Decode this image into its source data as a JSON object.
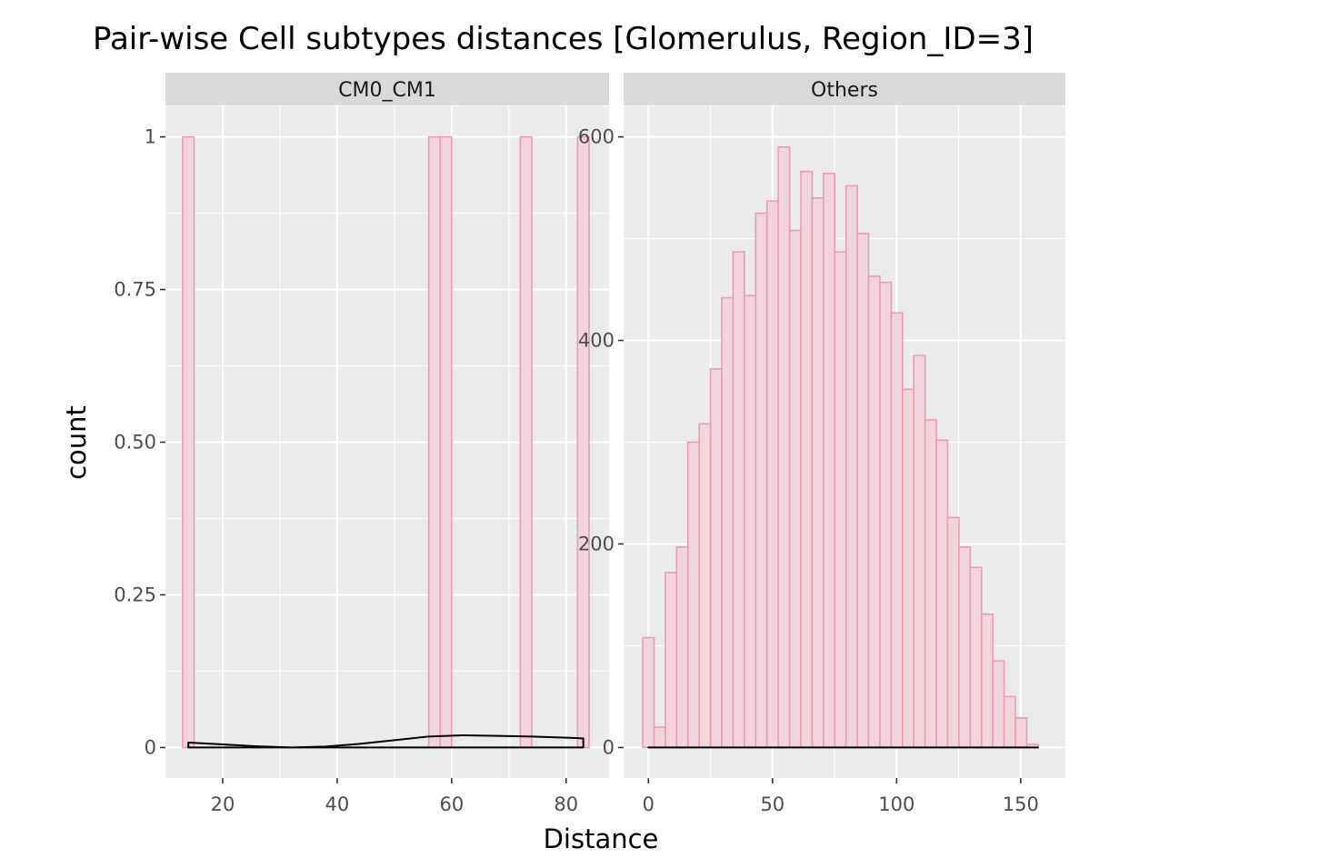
{
  "chart_data": {
    "type": "bar",
    "title": "Pair-wise Cell subtypes distances [Glomerulus, Region_ID=3]",
    "xlabel": "Distance",
    "ylabel": "count",
    "grid": true,
    "colors": {
      "panel_background": "#ebebeb",
      "strip_background": "#d9d9d9",
      "bar_fill": "#f2d5dc",
      "bar_outline": "#eb9cb3",
      "density_line": "#000000",
      "grid_line": "#ffffff"
    },
    "panels": [
      {
        "strip": "CM0_CM1",
        "xlim": [
          10,
          87.5
        ],
        "ylim": [
          -0.05,
          1.05
        ],
        "xticks": [
          20,
          40,
          60,
          80
        ],
        "xtick_labels": [
          "20",
          "40",
          "60",
          "80"
        ],
        "yticks": [
          0,
          0.25,
          0.5,
          0.75,
          1
        ],
        "ytick_labels": [
          "0",
          "0.25",
          "0.50",
          "0.75",
          "1"
        ],
        "bin_width": 2,
        "bins": [
          {
            "x": 14,
            "count": 1
          },
          {
            "x": 57,
            "count": 1
          },
          {
            "x": 59,
            "count": 1
          },
          {
            "x": 73,
            "count": 1
          },
          {
            "x": 83,
            "count": 1
          }
        ],
        "density": {
          "x": [
            14,
            20,
            26,
            32,
            38,
            44,
            50,
            56,
            62,
            68,
            74,
            80,
            83
          ],
          "y": [
            0.008,
            0.005,
            0.002,
            0.0,
            0.0015,
            0.006,
            0.012,
            0.018,
            0.02,
            0.019,
            0.018,
            0.016,
            0.015
          ]
        }
      },
      {
        "strip": "Others",
        "xlim": [
          -10,
          168
        ],
        "ylim": [
          -30,
          630
        ],
        "xticks": [
          0,
          50,
          100,
          150
        ],
        "xtick_labels": [
          "0",
          "50",
          "100",
          "150"
        ],
        "yticks": [
          0,
          200,
          400,
          600
        ],
        "ytick_labels": [
          "0",
          "200",
          "400",
          "600"
        ],
        "bin_width": 4.55,
        "bins": [
          {
            "x": 0.0,
            "count": 108
          },
          {
            "x": 4.55,
            "count": 20
          },
          {
            "x": 9.1,
            "count": 172
          },
          {
            "x": 13.65,
            "count": 197
          },
          {
            "x": 18.2,
            "count": 300
          },
          {
            "x": 22.75,
            "count": 318
          },
          {
            "x": 27.3,
            "count": 372
          },
          {
            "x": 31.85,
            "count": 442
          },
          {
            "x": 36.4,
            "count": 487
          },
          {
            "x": 40.95,
            "count": 444
          },
          {
            "x": 45.5,
            "count": 525
          },
          {
            "x": 50.05,
            "count": 537
          },
          {
            "x": 54.6,
            "count": 590
          },
          {
            "x": 59.15,
            "count": 508
          },
          {
            "x": 63.7,
            "count": 566
          },
          {
            "x": 68.25,
            "count": 540
          },
          {
            "x": 72.8,
            "count": 564
          },
          {
            "x": 77.35,
            "count": 487
          },
          {
            "x": 81.9,
            "count": 552
          },
          {
            "x": 86.45,
            "count": 505
          },
          {
            "x": 91.0,
            "count": 463
          },
          {
            "x": 95.55,
            "count": 457
          },
          {
            "x": 100.1,
            "count": 427
          },
          {
            "x": 104.65,
            "count": 352
          },
          {
            "x": 109.2,
            "count": 385
          },
          {
            "x": 113.75,
            "count": 322
          },
          {
            "x": 118.3,
            "count": 302
          },
          {
            "x": 122.85,
            "count": 226
          },
          {
            "x": 127.4,
            "count": 197
          },
          {
            "x": 131.95,
            "count": 177
          },
          {
            "x": 136.5,
            "count": 131
          },
          {
            "x": 141.05,
            "count": 85
          },
          {
            "x": 145.6,
            "count": 50
          },
          {
            "x": 150.15,
            "count": 29
          },
          {
            "x": 154.7,
            "count": 3
          }
        ],
        "density": {
          "x": [
            0,
            20,
            40,
            60,
            80,
            100,
            120,
            140,
            157
          ],
          "y": [
            0.0005,
            0.0008,
            0.001,
            0.0012,
            0.0012,
            0.001,
            0.0008,
            0.0004,
            0.0001
          ]
        }
      }
    ]
  }
}
